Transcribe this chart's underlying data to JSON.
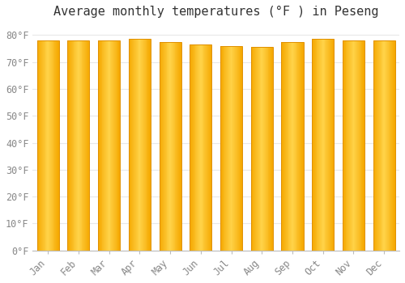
{
  "title": "Average monthly temperatures (°F ) in Peseng",
  "months": [
    "Jan",
    "Feb",
    "Mar",
    "Apr",
    "May",
    "Jun",
    "Jul",
    "Aug",
    "Sep",
    "Oct",
    "Nov",
    "Dec"
  ],
  "values": [
    78,
    78,
    78,
    78.5,
    77.5,
    76.5,
    76,
    75.5,
    77.5,
    78.5,
    78,
    78
  ],
  "bar_color_center": "#FFD44A",
  "bar_color_edge": "#F5A800",
  "bar_edge_color": "#E09000",
  "background_color": "#FFFFFF",
  "grid_color": "#E8E8E8",
  "yticks": [
    0,
    10,
    20,
    30,
    40,
    50,
    60,
    70,
    80
  ],
  "ylim": [
    0,
    84
  ],
  "title_fontsize": 11,
  "tick_fontsize": 8.5,
  "font_family": "monospace"
}
